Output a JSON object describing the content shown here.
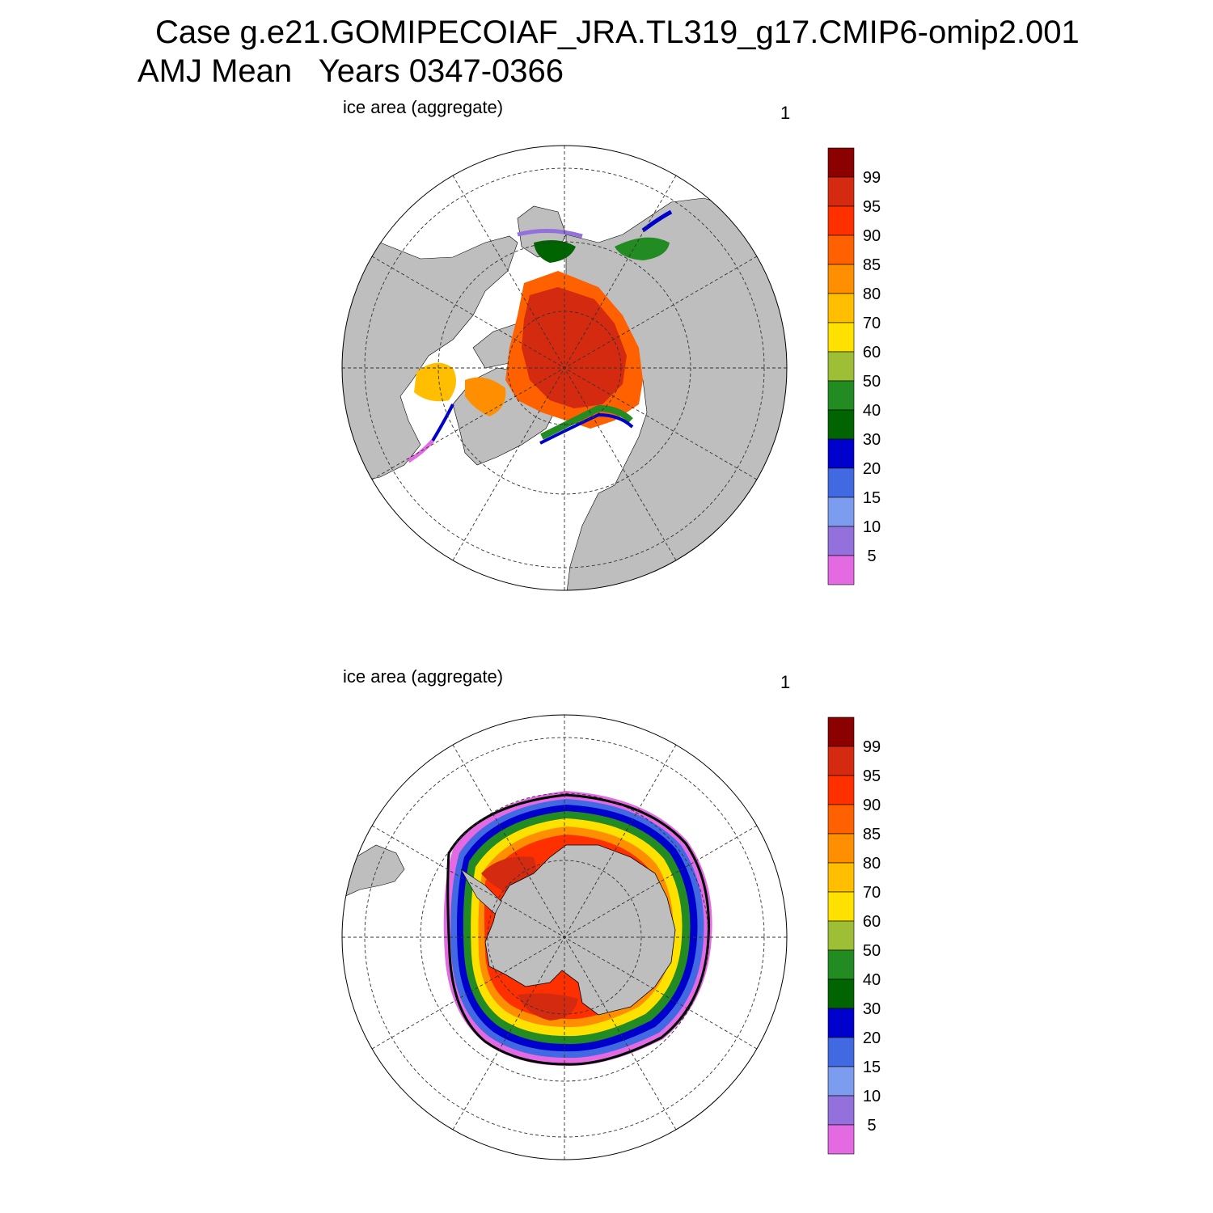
{
  "header": {
    "title_line1": "Case g.e21.GOMIPECOIAF_JRA.TL319_g17.CMIP6-omip2.001",
    "title_line2": "AMJ Mean   Years 0347-0366"
  },
  "panels": [
    {
      "id": "north",
      "hemisphere": "Northern",
      "label": "ice area  (aggregate)",
      "number": "1"
    },
    {
      "id": "south",
      "hemisphere": "Southern",
      "label": "ice area  (aggregate)",
      "number": "1"
    }
  ],
  "colorbar": {
    "labels": [
      "99",
      "95",
      "90",
      "85",
      "80",
      "70",
      "60",
      "50",
      "40",
      "30",
      "20",
      "15",
      "10",
      "5"
    ],
    "colors": [
      "#8b0000",
      "#d42a10",
      "#ff3000",
      "#ff6000",
      "#ff8f00",
      "#ffbf00",
      "#ffe100",
      "#9dbe35",
      "#228b22",
      "#006400",
      "#0000cd",
      "#4169e1",
      "#7b9cef",
      "#9370db",
      "#e36ae3"
    ]
  },
  "colors": {
    "land": "#bebebe",
    "ocean": "#ffffff",
    "edge_contour": "#000000"
  }
}
